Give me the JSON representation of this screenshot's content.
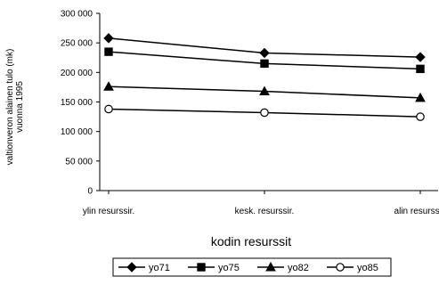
{
  "chart_data": {
    "type": "line",
    "title": "",
    "xlabel": "kodin resurssit",
    "ylabel": "valtionveron alainen tulo (mk) vuonna 1995",
    "categories": [
      "ylin resurssir.",
      "kesk. resurssir.",
      "alin resurssir."
    ],
    "ylim": [
      0,
      300000
    ],
    "y_ticks": [
      "0",
      "50 000",
      "100 000",
      "150 000",
      "200 000",
      "250 000",
      "300 000"
    ],
    "y_tick_values": [
      0,
      50000,
      100000,
      150000,
      200000,
      250000,
      300000
    ],
    "grid": false,
    "legend_position": "bottom",
    "series": [
      {
        "name": "yo71",
        "marker": "diamond-filled",
        "values": [
          258000,
          233000,
          226000
        ]
      },
      {
        "name": "yo75",
        "marker": "square-filled",
        "values": [
          235000,
          215000,
          206000
        ]
      },
      {
        "name": "yo82",
        "marker": "triangle-filled",
        "values": [
          176000,
          168000,
          157000
        ]
      },
      {
        "name": "yo85",
        "marker": "circle-open",
        "values": [
          138000,
          132000,
          125000
        ]
      }
    ],
    "colors": {
      "line": "#000000",
      "background": "#ffffff"
    }
  }
}
